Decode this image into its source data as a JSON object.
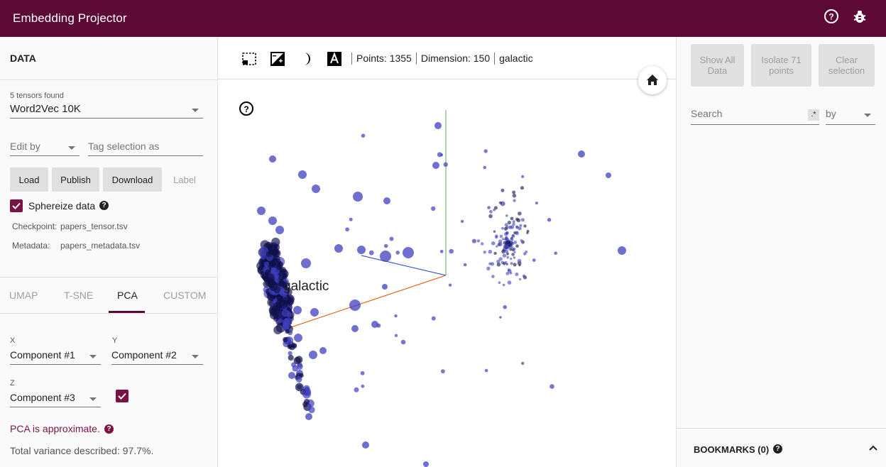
{
  "app": {
    "title": "Embedding Projector"
  },
  "left": {
    "section_title": "DATA",
    "tensors_found": "5 tensors found",
    "tensor_selected": "Word2Vec 10K",
    "edit_by": "Edit by",
    "tag_placeholder": "Tag selection as",
    "buttons": {
      "load": "Load",
      "publish": "Publish",
      "download": "Download",
      "label": "Label"
    },
    "sphereize": "Sphereize data",
    "checkpoint_label": "Checkpoint:",
    "checkpoint_value": "papers_tensor.tsv",
    "metadata_label": "Metadata:",
    "metadata_value": "papers_metadata.tsv",
    "tabs": [
      "UMAP",
      "T-SNE",
      "PCA",
      "CUSTOM"
    ],
    "active_tab": "PCA",
    "x_label": "X",
    "x_value": "Component #1",
    "y_label": "Y",
    "y_value": "Component #2",
    "z_label": "Z",
    "z_value": "Component #3",
    "pca_note": "PCA is approximate.",
    "variance": "Total variance described: 97.7%."
  },
  "center": {
    "points": "Points: 1355",
    "dimension": "Dimension: 150",
    "selected": "galactic",
    "plot_label": "galactic"
  },
  "right": {
    "show_all_1": "Show All",
    "show_all_2": "Data",
    "isolate_1": "Isolate 71",
    "isolate_2": "points",
    "clear_1": "Clear",
    "clear_2": "selection",
    "search_placeholder": "Search",
    "regex": ".*",
    "by": "by",
    "bookmarks": "BOOKMARKS (0)"
  },
  "colors": {
    "brand": "#5c0a35",
    "accent": "#7b1244",
    "point": "#3f3fbf"
  }
}
